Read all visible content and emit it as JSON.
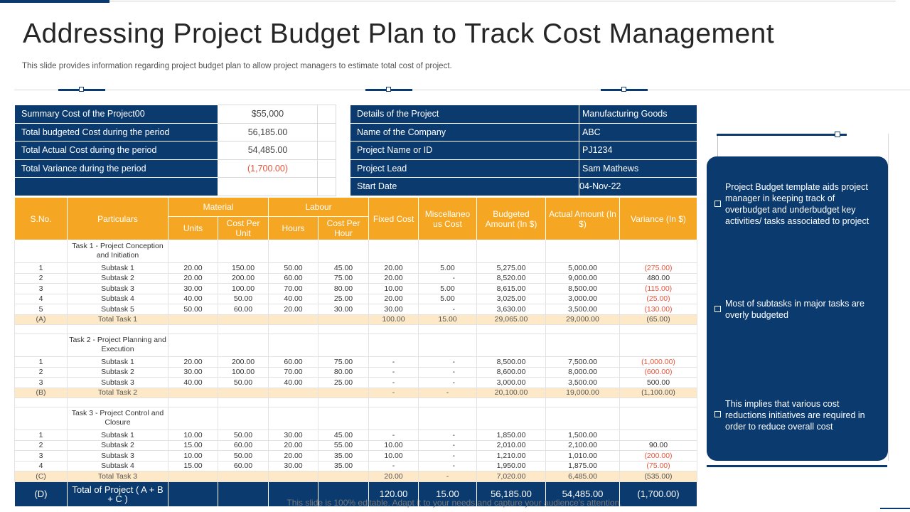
{
  "title": "Addressing Project Budget Plan to Track Cost Management",
  "subtitle": "This slide provides information regarding project budget plan to allow project managers to estimate total cost of project.",
  "summary": [
    {
      "label": "Summary Cost of the Project00",
      "value": "$55,000"
    },
    {
      "label": "Total budgeted Cost during the period",
      "value": "56,185.00"
    },
    {
      "label": "Total Actual Cost during the period",
      "value": "54,485.00"
    },
    {
      "label": "Total Variance during the period",
      "value": "(1,700.00)"
    },
    {
      "label": "",
      "value": ""
    }
  ],
  "details": [
    {
      "label": "Details of the Project",
      "value": "Manufacturing Goods"
    },
    {
      "label": "Name of the Company",
      "value": "ABC"
    },
    {
      "label": "Project Name or ID",
      "value": "PJ1234"
    },
    {
      "label": "Project Lead",
      "value": "Sam Mathews"
    },
    {
      "label": "Start Date",
      "value": "04-Nov-22"
    }
  ],
  "headers": {
    "sno": "S.No.",
    "particulars": "Particulars",
    "material": "Material",
    "labour": "Labour",
    "units": "Units",
    "cost_per_unit": "Cost Per Unit",
    "hours": "Hours",
    "cost_per_hour": "Cost Per Hour",
    "fixed_cost": "Fixed Cost",
    "misc_cost": "Miscellaneo us Cost",
    "budgeted": "Budgeted Amount (In $)",
    "actual": "Actual Amount (In $)",
    "variance": "Variance (In $)"
  },
  "task1": {
    "title": "Task 1 - Project Conception and Initiation",
    "rows": [
      [
        "1",
        "Subtask 1",
        "20.00",
        "150.00",
        "50.00",
        "45.00",
        "20.00",
        "5.00",
        "5,275.00",
        "5,000.00",
        "(275.00)"
      ],
      [
        "2",
        "Subtask 2",
        "20.00",
        "200.00",
        "60.00",
        "75.00",
        "20.00",
        "-",
        "8,520.00",
        "9,000.00",
        "480.00"
      ],
      [
        "3",
        "Subtask 3",
        "30.00",
        "100.00",
        "70.00",
        "80.00",
        "10.00",
        "5.00",
        "8,615.00",
        "8,500.00",
        "(115.00)"
      ],
      [
        "4",
        "Subtask 4",
        "40.00",
        "50.00",
        "40.00",
        "25.00",
        "20.00",
        "5.00",
        "3,025.00",
        "3,000.00",
        "(25.00)"
      ],
      [
        "5",
        "Subtask 5",
        "50.00",
        "60.00",
        "20.00",
        "30.00",
        "30.00",
        "-",
        "3,630.00",
        "3,500.00",
        "(130.00)"
      ]
    ],
    "total": [
      "(A)",
      "Total Task 1",
      "",
      "",
      "",
      "",
      "100.00",
      "15.00",
      "29,065.00",
      "29,000.00",
      "(65.00)"
    ]
  },
  "task2": {
    "title": "Task 2 - Project Planning and Execution",
    "rows": [
      [
        "1",
        "Subtask 1",
        "20.00",
        "200.00",
        "60.00",
        "75.00",
        "-",
        "-",
        "8,500.00",
        "7,500.00",
        "(1,000.00)"
      ],
      [
        "2",
        "Subtask 2",
        "30.00",
        "100.00",
        "70.00",
        "80.00",
        "-",
        "-",
        "8,600.00",
        "8,000.00",
        "(600.00)"
      ],
      [
        "3",
        "Subtask 3",
        "40.00",
        "50.00",
        "40.00",
        "25.00",
        "-",
        "-",
        "3,000.00",
        "3,500.00",
        "500.00"
      ]
    ],
    "total": [
      "(B)",
      "Total Task 2",
      "",
      "",
      "",
      "",
      "-",
      "-",
      "20,100.00",
      "19,000.00",
      "(1,100.00)"
    ]
  },
  "task3": {
    "title": "Task 3 - Project Control and Closure",
    "rows": [
      [
        "1",
        "Subtask 1",
        "10.00",
        "50.00",
        "30.00",
        "45.00",
        "-",
        "-",
        "1,850.00",
        "1,500.00",
        ""
      ],
      [
        "2",
        "Subtask 2",
        "15.00",
        "60.00",
        "20.00",
        "55.00",
        "10.00",
        "-",
        "2,010.00",
        "2,100.00",
        "90.00"
      ],
      [
        "3",
        "Subtask 3",
        "10.00",
        "50.00",
        "20.00",
        "35.00",
        "10.00",
        "-",
        "1,210.00",
        "1,010.00",
        "(200.00)"
      ],
      [
        "4",
        "Subtask 4",
        "15.00",
        "60.00",
        "30.00",
        "35.00",
        "-",
        "-",
        "1,950.00",
        "1,875.00",
        "(75.00)"
      ]
    ],
    "total": [
      "(C)",
      "Total Task 3",
      "",
      "",
      "",
      "",
      "20.00",
      "-",
      "7,020.00",
      "6,485.00",
      "(535.00)"
    ]
  },
  "grand": [
    "(D)",
    "Total of Project ( A + B + C )",
    "",
    "",
    "",
    "",
    "120.00",
    "15.00",
    "56,185.00",
    "54,485.00",
    "(1,700.00)"
  ],
  "notes": [
    "Project Budget template aids project manager in keeping track of overbudget  and underbudget  key activities/ tasks associated to project",
    "Most of subtasks in major tasks are overly budgeted",
    "This implies that various cost reductions initiatives are required in order to reduce overall  cost"
  ],
  "footer": "This slide is 100% editable. Adapt it to your needs and capture your audience's attention.",
  "colors": {
    "navy": "#0b3a6e",
    "orange": "#f5a623",
    "negative": "#e8553a",
    "total_row": "#fde9c7"
  }
}
